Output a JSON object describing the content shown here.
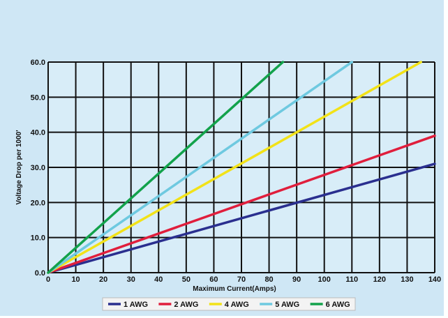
{
  "chart_data": {
    "type": "line",
    "xlabel": "Maximum Current(Amps)",
    "ylabel": "Voltage Drop per 1000'",
    "xlim": [
      0,
      140
    ],
    "ylim": [
      0,
      60
    ],
    "x_ticks": [
      "0",
      "10",
      "20",
      "30",
      "40",
      "50",
      "60",
      "70",
      "80",
      "90",
      "100",
      "110",
      "120",
      "130",
      "140"
    ],
    "y_ticks": [
      "0.0",
      "10.0",
      "20.0",
      "30.0",
      "40.0",
      "50.0",
      "60.0"
    ],
    "grid": true,
    "legend_position": "bottom",
    "series": [
      {
        "name": "1 AWG",
        "color": "#2a2f8f",
        "x": [
          0,
          140
        ],
        "y": [
          0,
          31
        ]
      },
      {
        "name": "2 AWG",
        "color": "#e01e3c",
        "x": [
          0,
          140
        ],
        "y": [
          0,
          39
        ]
      },
      {
        "name": "4 AWG",
        "color": "#f2e218",
        "x": [
          0,
          135
        ],
        "y": [
          0,
          60
        ]
      },
      {
        "name": "5 AWG",
        "color": "#6ec9e0",
        "x": [
          0,
          110
        ],
        "y": [
          0,
          60
        ]
      },
      {
        "name": "6 AWG",
        "color": "#12a24b",
        "x": [
          0,
          85
        ],
        "y": [
          0,
          60
        ]
      }
    ]
  }
}
